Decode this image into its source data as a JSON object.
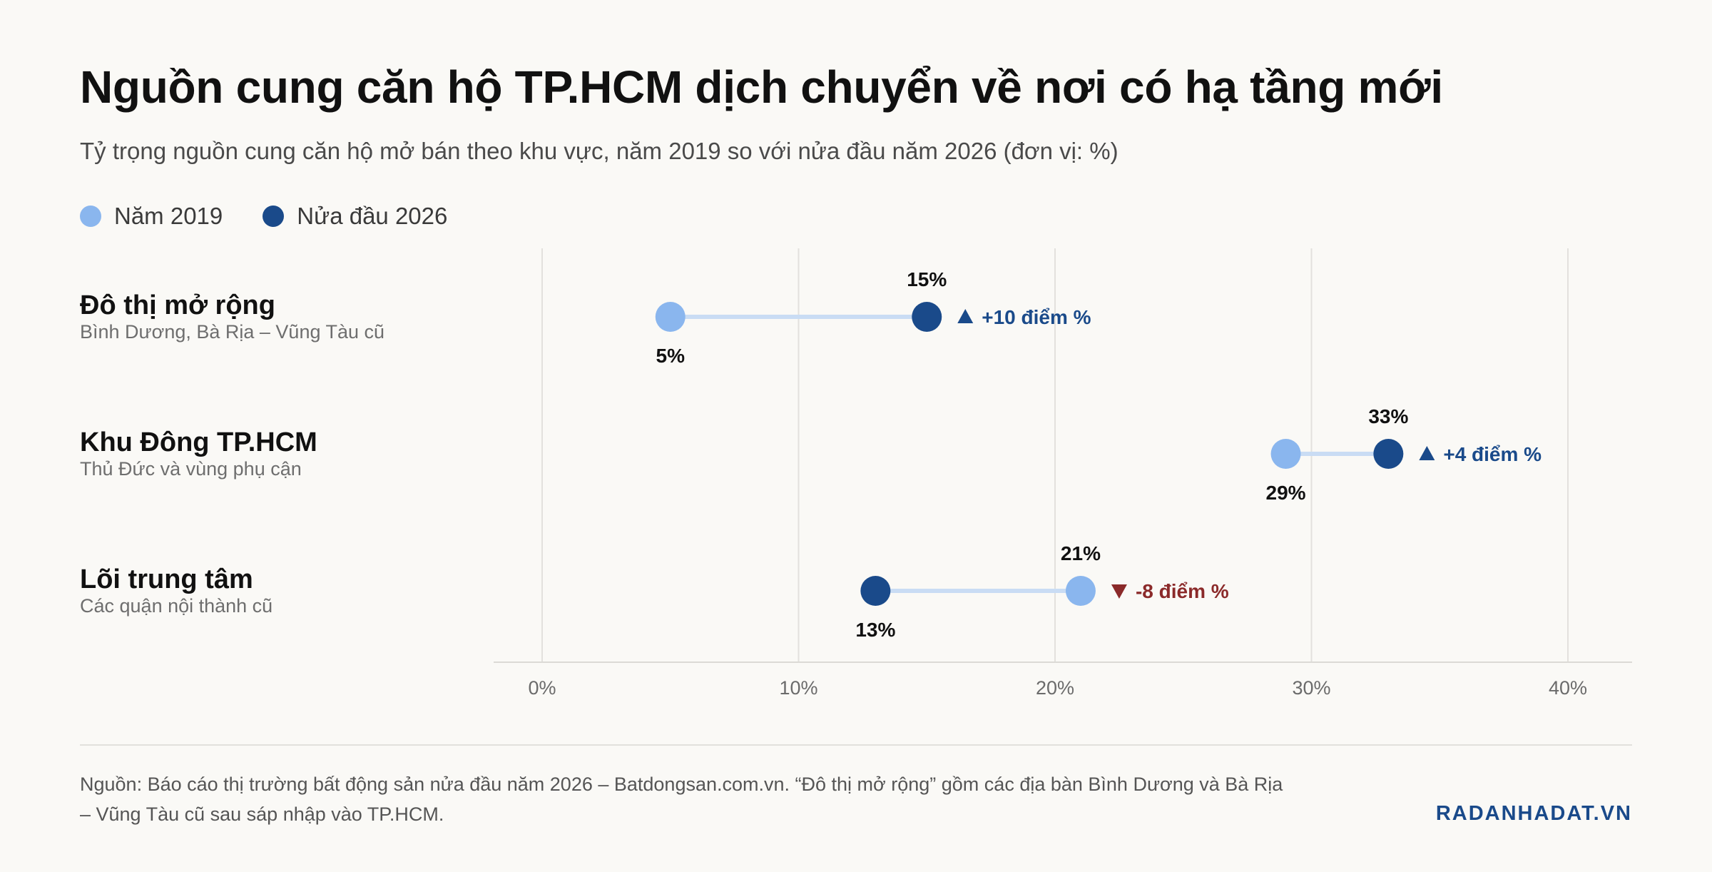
{
  "title": "Nguồn cung căn hộ TP.HCM dịch chuyển về nơi có hạ tầng mới",
  "subtitle": "Tỷ trọng nguồn cung căn hộ mở bán theo khu vực, năm 2019 so với nửa đầu năm 2026 (đơn vị: %)",
  "legend": [
    {
      "label": "Năm 2019",
      "color": "#8ab6ee"
    },
    {
      "label": "Nửa đầu 2026",
      "color": "#1a4a8a"
    }
  ],
  "chart_data": {
    "type": "dumbbell",
    "x_ticks": [
      "0%",
      "10%",
      "20%",
      "30%",
      "40%"
    ],
    "xlim": [
      0,
      40
    ],
    "grid": true,
    "series_colors": {
      "2019": "#8ab6ee",
      "2026": "#1a4a8a",
      "connector": "#c9dcf4",
      "increase": "#1a4a8a",
      "decrease": "#8b2a2a"
    },
    "rows": [
      {
        "category": "Đô thị mở rộng",
        "subtitle": "Bình Dương, Bà Rịa – Vũng Tàu cũ",
        "value_2019": 5,
        "value_2026": 15,
        "label_2019": "5%",
        "label_2026": "15%",
        "change_label": "+10 điểm %",
        "direction": "up"
      },
      {
        "category": "Khu Đông TP.HCM",
        "subtitle": "Thủ Đức và vùng phụ cận",
        "value_2019": 29,
        "value_2026": 33,
        "label_2019": "29%",
        "label_2026": "33%",
        "change_label": "+4 điểm %",
        "direction": "up"
      },
      {
        "category": "Lõi trung tâm",
        "subtitle": "Các quận nội thành cũ",
        "value_2019": 21,
        "value_2026": 13,
        "label_2019": "21%",
        "label_2026": "13%",
        "change_label": "-8 điểm %",
        "direction": "down"
      }
    ]
  },
  "footer": {
    "source": "Nguồn: Báo cáo thị trường bất động sản nửa đầu năm 2026 – Batdongsan.com.vn. “Đô thị mở rộng” gồm các địa bàn Bình Dương và Bà Rịa – Vũng Tàu cũ sau sáp nhập vào TP.HCM.",
    "brand": "RADANHADAT.VN"
  }
}
